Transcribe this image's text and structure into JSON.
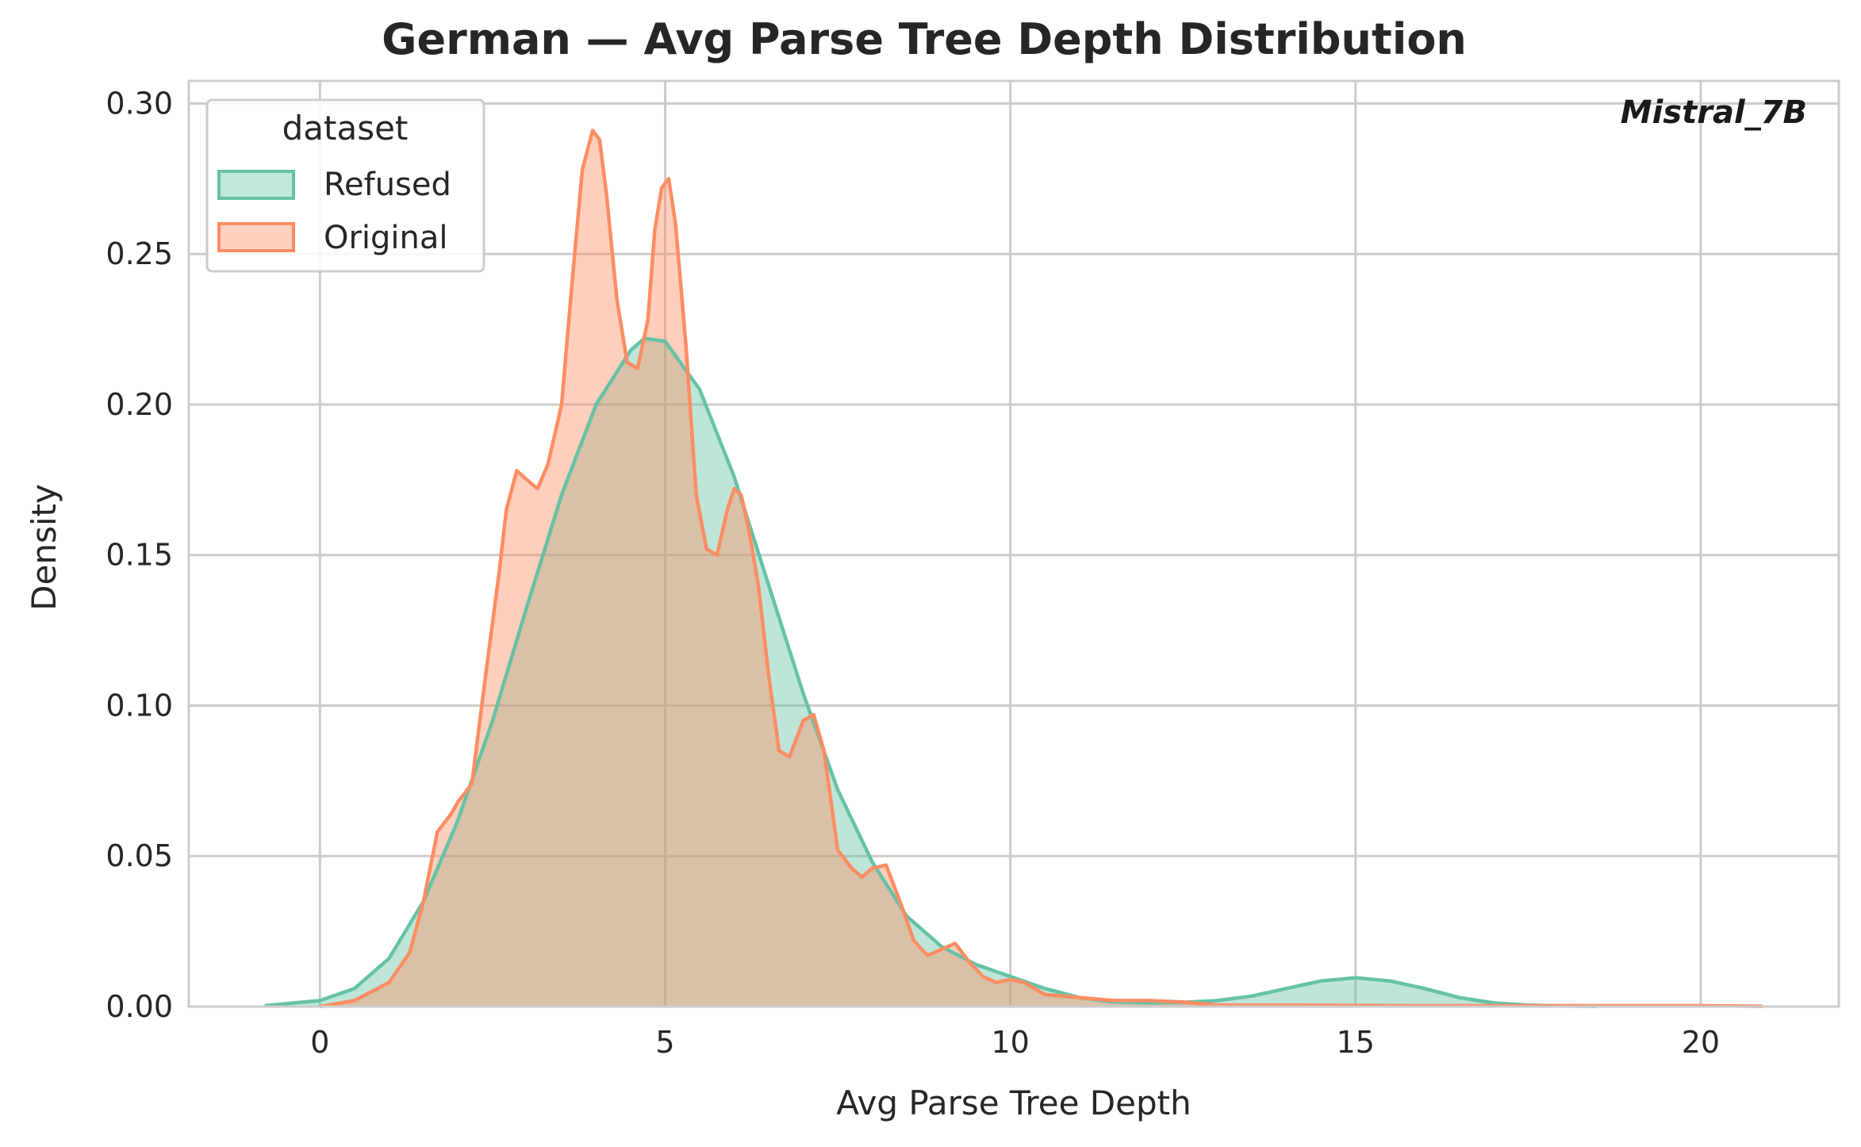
{
  "chart_data": {
    "type": "area",
    "title": "German — Avg Parse Tree Depth Distribution",
    "xlabel": "Avg Parse Tree Depth",
    "ylabel": "Density",
    "xlim": [
      -1.9,
      22.0
    ],
    "ylim": [
      0,
      0.3075
    ],
    "x_ticks": [
      "0",
      "5",
      "10",
      "15",
      "20"
    ],
    "y_ticks": [
      "0.00",
      "0.05",
      "0.10",
      "0.15",
      "0.20",
      "0.25",
      "0.30"
    ],
    "x_tick_values": [
      0,
      5,
      10,
      15,
      20
    ],
    "y_tick_values": [
      0,
      0.05,
      0.1,
      0.15,
      0.2,
      0.25,
      0.3
    ],
    "grid": true,
    "legend": {
      "title": "dataset",
      "placement": "top-left"
    },
    "annotation": "Mistral_7B",
    "series": [
      {
        "name": "Refused",
        "color": "#66c2a5",
        "x": [
          -0.8,
          0,
          0.5,
          1.0,
          1.5,
          2.0,
          2.5,
          3.0,
          3.5,
          4.0,
          4.5,
          4.7,
          5.0,
          5.5,
          6.0,
          6.5,
          7.0,
          7.5,
          8.0,
          8.5,
          9.0,
          9.5,
          10.0,
          10.5,
          11.0,
          11.5,
          12.0,
          12.5,
          13.0,
          13.5,
          14.0,
          14.5,
          15.0,
          15.5,
          16.0,
          16.5,
          17.0,
          17.5,
          18.0,
          18.5
        ],
        "y": [
          0.0003,
          0.002,
          0.006,
          0.016,
          0.035,
          0.062,
          0.095,
          0.133,
          0.17,
          0.2,
          0.218,
          0.222,
          0.221,
          0.205,
          0.176,
          0.14,
          0.104,
          0.072,
          0.048,
          0.03,
          0.02,
          0.014,
          0.01,
          0.006,
          0.003,
          0.0015,
          0.0012,
          0.0014,
          0.002,
          0.0035,
          0.006,
          0.0085,
          0.0096,
          0.0085,
          0.006,
          0.003,
          0.0012,
          0.0005,
          0.0002,
          0.0001
        ]
      },
      {
        "name": "Original",
        "color": "#fc8d62",
        "x": [
          0.0,
          0.5,
          1.0,
          1.3,
          1.5,
          1.7,
          1.9,
          2.0,
          2.2,
          2.4,
          2.6,
          2.7,
          2.85,
          3.0,
          3.15,
          3.3,
          3.5,
          3.65,
          3.8,
          3.95,
          4.05,
          4.15,
          4.3,
          4.45,
          4.6,
          4.75,
          4.85,
          4.95,
          5.05,
          5.15,
          5.3,
          5.45,
          5.6,
          5.75,
          5.9,
          6.0,
          6.1,
          6.2,
          6.35,
          6.5,
          6.65,
          6.8,
          7.0,
          7.15,
          7.3,
          7.5,
          7.7,
          7.85,
          8.0,
          8.2,
          8.4,
          8.6,
          8.8,
          9.0,
          9.2,
          9.4,
          9.6,
          9.8,
          10.0,
          10.2,
          10.5,
          11.0,
          11.5,
          12.0,
          12.5,
          13.0,
          14.0,
          15.0,
          16.0,
          17.0,
          18.0,
          19.0,
          20.0,
          20.9
        ],
        "y": [
          0.0,
          0.002,
          0.008,
          0.018,
          0.035,
          0.058,
          0.064,
          0.068,
          0.074,
          0.11,
          0.145,
          0.165,
          0.178,
          0.175,
          0.172,
          0.18,
          0.2,
          0.24,
          0.278,
          0.291,
          0.288,
          0.27,
          0.235,
          0.214,
          0.212,
          0.228,
          0.258,
          0.272,
          0.275,
          0.26,
          0.22,
          0.17,
          0.152,
          0.15,
          0.165,
          0.172,
          0.17,
          0.16,
          0.14,
          0.11,
          0.085,
          0.083,
          0.095,
          0.097,
          0.085,
          0.052,
          0.046,
          0.043,
          0.046,
          0.047,
          0.035,
          0.022,
          0.017,
          0.019,
          0.021,
          0.015,
          0.01,
          0.008,
          0.009,
          0.008,
          0.004,
          0.003,
          0.002,
          0.002,
          0.0015,
          0.0005,
          0.0005,
          0.0004,
          0.0003,
          0.0003,
          0.0003,
          0.0003,
          0.0003,
          0.0001
        ]
      }
    ]
  }
}
